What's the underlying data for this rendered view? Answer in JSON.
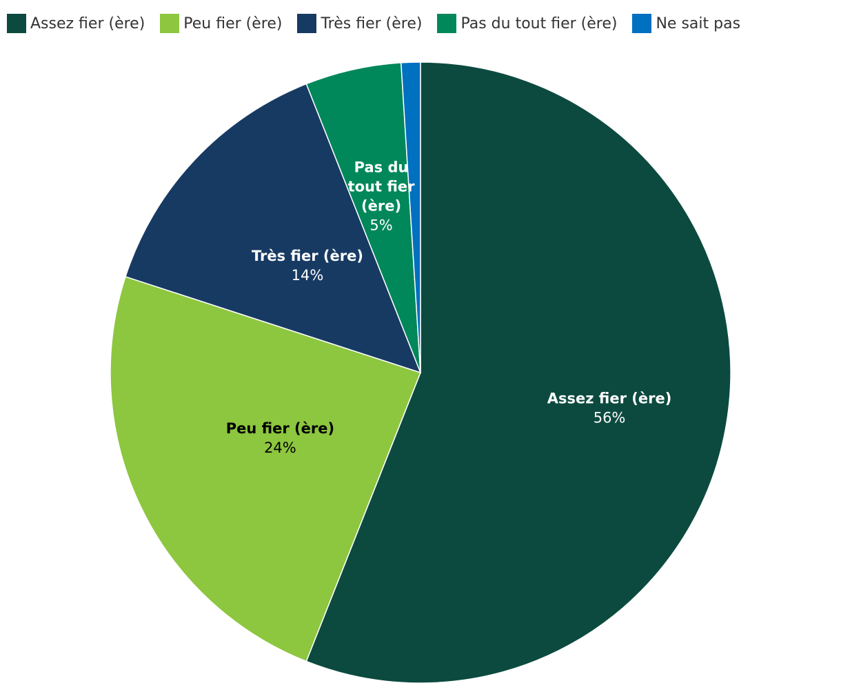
{
  "chart_data": {
    "type": "pie",
    "legend_position": "top-left",
    "slices": [
      {
        "label": "Assez fier (ère)",
        "value": 56,
        "value_label": "56%",
        "color": "#0c4a3f",
        "label_color": "#ffffff",
        "label_lines": [
          "Assez fier (ère)"
        ]
      },
      {
        "label": "Peu fier (ère)",
        "value": 24,
        "value_label": "24%",
        "color": "#8dc63f",
        "label_color": "#000000",
        "label_lines": [
          "Peu fier (ère)"
        ]
      },
      {
        "label": "Très fier (ère)",
        "value": 14,
        "value_label": "14%",
        "color": "#173a63",
        "label_color": "#ffffff",
        "label_lines": [
          "Très fier (ère)"
        ]
      },
      {
        "label": "Pas du tout fier (ère)",
        "value": 5,
        "value_label": "5%",
        "color": "#00875a",
        "label_color": "#ffffff",
        "label_lines": [
          "Pas du",
          "tout fier",
          "(ère)"
        ]
      },
      {
        "label": "Ne sait pas",
        "value": 1,
        "value_label": "",
        "color": "#0070c0",
        "label_color": "#ffffff",
        "label_lines": []
      }
    ]
  }
}
